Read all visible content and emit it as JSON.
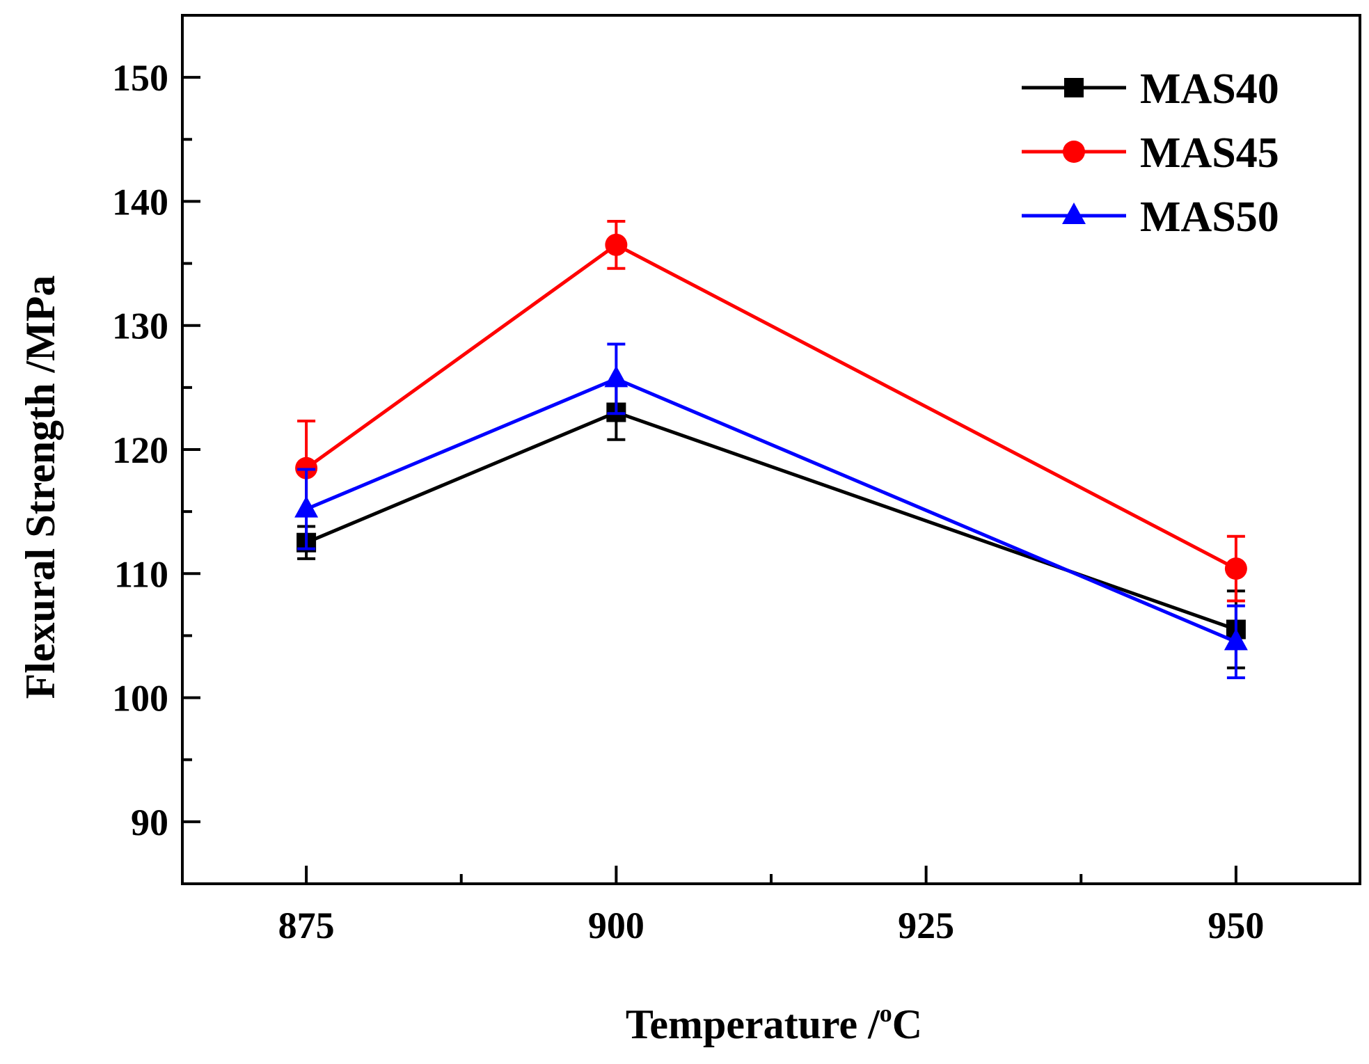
{
  "chart_data": {
    "type": "line",
    "title": "",
    "xlabel": "Temperature /",
    "xlabel_unit_sup": "o",
    "xlabel_unit": "C",
    "ylabel": "Flexural Strength /MPa",
    "xlim": [
      865,
      960
    ],
    "ylim": [
      85,
      155
    ],
    "x_ticks": [
      875,
      900,
      925,
      950
    ],
    "x_minor_ticks": [
      887.5,
      912.5,
      937.5
    ],
    "y_ticks": [
      90,
      100,
      110,
      120,
      130,
      140,
      150
    ],
    "y_minor_ticks": [
      95,
      105,
      115,
      125,
      135,
      145
    ],
    "x": [
      875,
      900,
      950
    ],
    "legend_position": "top-right",
    "series": [
      {
        "name": "MAS40",
        "color": "#000000",
        "marker": "square",
        "values": [
          112.5,
          123.0,
          105.5
        ],
        "errors": [
          1.3,
          2.2,
          3.1
        ]
      },
      {
        "name": "MAS45",
        "color": "#ff0000",
        "marker": "circle",
        "values": [
          118.5,
          136.5,
          110.4
        ],
        "errors": [
          3.8,
          1.9,
          2.6
        ]
      },
      {
        "name": "MAS50",
        "color": "#0000ff",
        "marker": "triangle",
        "values": [
          115.2,
          125.7,
          104.5
        ],
        "errors": [
          3.2,
          2.8,
          2.9
        ]
      }
    ]
  }
}
